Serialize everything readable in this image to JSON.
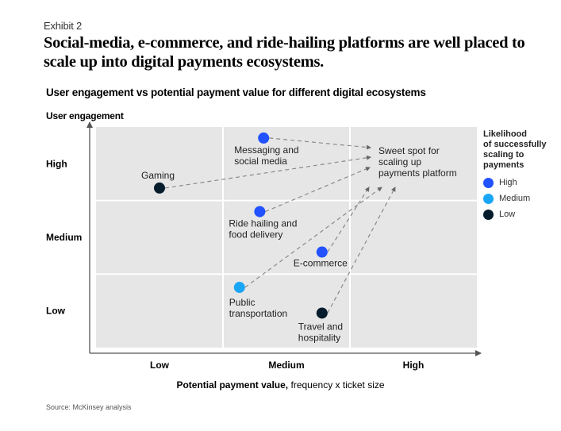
{
  "header": {
    "exhibit": "Exhibit 2",
    "headline": "Social-media, e-commerce, and ride-hailing platforms are well placed to scale up into digital payments ecosystems."
  },
  "chart_data": {
    "type": "scatter",
    "title": "User engagement vs potential payment value for different digital ecosystems",
    "ylabel": "User engagement",
    "xlabel_bold": "Potential payment value,",
    "xlabel_rest": " frequency x ticket size",
    "x_categories": [
      "Low",
      "Medium",
      "High"
    ],
    "y_categories": [
      "Low",
      "Medium",
      "High"
    ],
    "xlim": [
      0,
      3
    ],
    "ylim": [
      0,
      3
    ],
    "grid": true,
    "target": {
      "label_lines": [
        "Sweet spot for",
        "scaling up",
        "payments platform"
      ],
      "x": 2.25,
      "y": 2.6
    },
    "points": [
      {
        "name": "Messaging and social media",
        "label_lines": [
          "Messaging and",
          "social media"
        ],
        "x": 1.32,
        "y": 2.85,
        "likelihood": "High"
      },
      {
        "name": "Gaming",
        "label_lines": [
          "Gaming"
        ],
        "x": 0.5,
        "y": 2.17,
        "likelihood": "Low"
      },
      {
        "name": "Ride hailing and food delivery",
        "label_lines": [
          "Ride hailing and",
          "food delivery"
        ],
        "x": 1.29,
        "y": 1.85,
        "likelihood": "High"
      },
      {
        "name": "E-commerce",
        "label_lines": [
          "E-commerce"
        ],
        "x": 1.78,
        "y": 1.3,
        "likelihood": "High"
      },
      {
        "name": "Public transportation",
        "label_lines": [
          "Public",
          "transportation"
        ],
        "x": 1.13,
        "y": 0.82,
        "likelihood": "Medium"
      },
      {
        "name": "Travel and hospitality",
        "label_lines": [
          "Travel and",
          "hospitality"
        ],
        "x": 1.78,
        "y": 0.47,
        "likelihood": "Low"
      }
    ],
    "legend": {
      "title": "Likelihood of successfully scaling to payments",
      "title_lines": [
        "Likelihood",
        "of successfully",
        "scaling to",
        "payments"
      ],
      "placement": "right",
      "items": [
        {
          "label": "High",
          "color": "#2251ff"
        },
        {
          "label": "Medium",
          "color": "#1ba6f5"
        },
        {
          "label": "Low",
          "color": "#051c2c"
        }
      ]
    }
  },
  "footer": {
    "source": "Source: McKinsey analysis"
  }
}
